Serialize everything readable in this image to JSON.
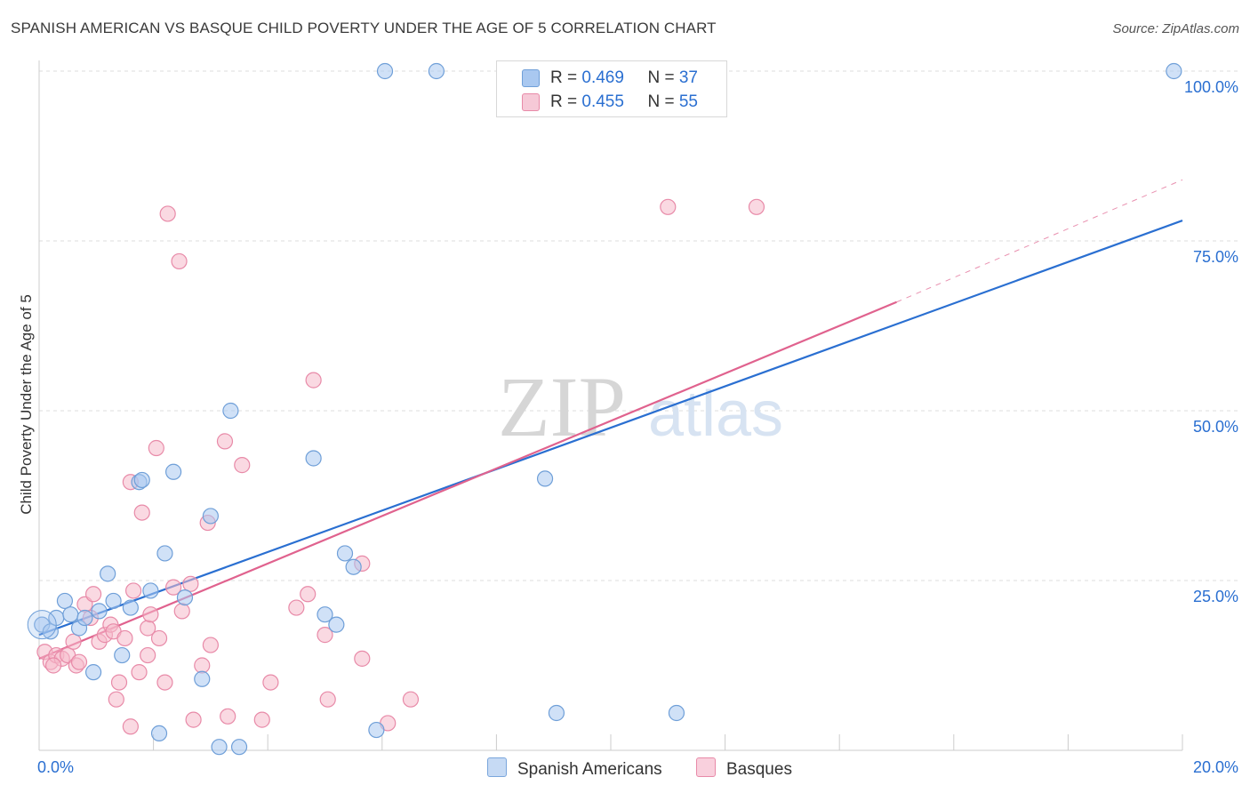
{
  "title": "SPANISH AMERICAN VS BASQUE CHILD POVERTY UNDER THE AGE OF 5 CORRELATION CHART",
  "source": "Source: ZipAtlas.com",
  "watermark": {
    "zip": "ZIP",
    "atlas": "atlas"
  },
  "colors": {
    "blue_fill": "#a9c8f0",
    "blue_stroke": "#6f9fd8",
    "blue_line": "#2a6fd1",
    "pink_fill": "#f6b9cb",
    "pink_stroke": "#e88aa8",
    "pink_line": "#e0628e",
    "value_text": "#2a6fd1",
    "grid": "#dddddd"
  },
  "legend": {
    "rows": [
      {
        "r_label": "R = ",
        "r_value": "0.469",
        "n_label": "N = ",
        "n_value": "37"
      },
      {
        "r_label": "R = ",
        "r_value": "0.455",
        "n_label": "N = ",
        "n_value": "55"
      }
    ]
  },
  "chart_data": {
    "type": "scatter",
    "xlabel": "",
    "ylabel": "Child Poverty Under the Age of 5",
    "xlim": [
      0,
      20
    ],
    "ylim": [
      0,
      100
    ],
    "x_tick_labels": [
      "0.0%",
      "20.0%"
    ],
    "y_tick_labels": [
      {
        "value": 25,
        "label": "25.0%"
      },
      {
        "value": 50,
        "label": "50.0%"
      },
      {
        "value": 75,
        "label": "75.0%"
      },
      {
        "value": 100,
        "label": "100.0%"
      }
    ],
    "grid": true,
    "legend_position": "bottom",
    "series": [
      {
        "name": "Spanish Americans",
        "r": 0.469,
        "n": 37,
        "trend": {
          "x": [
            0,
            20
          ],
          "y": [
            17,
            78
          ],
          "dashed_extension": false
        },
        "points": [
          [
            0.05,
            18.5
          ],
          [
            0.2,
            17.5
          ],
          [
            0.3,
            19.5
          ],
          [
            0.45,
            22.0
          ],
          [
            0.55,
            20.0
          ],
          [
            0.7,
            18.0
          ],
          [
            0.8,
            19.5
          ],
          [
            0.95,
            11.5
          ],
          [
            1.05,
            20.5
          ],
          [
            1.2,
            26.0
          ],
          [
            1.3,
            22.0
          ],
          [
            1.45,
            14.0
          ],
          [
            1.6,
            21.0
          ],
          [
            1.75,
            39.5
          ],
          [
            1.95,
            23.5
          ],
          [
            2.1,
            2.5
          ],
          [
            2.2,
            29.0
          ],
          [
            2.35,
            41.0
          ],
          [
            2.55,
            22.5
          ],
          [
            2.85,
            10.5
          ],
          [
            3.0,
            34.5
          ],
          [
            3.15,
            0.5
          ],
          [
            3.35,
            50.0
          ],
          [
            3.5,
            0.5
          ],
          [
            4.8,
            43.0
          ],
          [
            5.0,
            20.0
          ],
          [
            5.2,
            18.5
          ],
          [
            5.35,
            29.0
          ],
          [
            5.5,
            27.0
          ],
          [
            5.9,
            3.0
          ],
          [
            6.05,
            100.0
          ],
          [
            6.95,
            100.0
          ],
          [
            8.85,
            40.0
          ],
          [
            9.05,
            5.5
          ],
          [
            11.15,
            5.5
          ],
          [
            19.85,
            100.0
          ],
          [
            1.8,
            39.8
          ]
        ]
      },
      {
        "name": "Basques",
        "r": 0.455,
        "n": 55,
        "trend": {
          "x": [
            0,
            15
          ],
          "y": [
            13.5,
            66
          ],
          "dashed_extension": true,
          "dashed_to": [
            20,
            84
          ]
        },
        "points": [
          [
            0.1,
            14.5
          ],
          [
            0.2,
            13.0
          ],
          [
            0.3,
            14.0
          ],
          [
            0.4,
            13.5
          ],
          [
            0.5,
            14.0
          ],
          [
            0.6,
            16.0
          ],
          [
            0.65,
            12.5
          ],
          [
            0.7,
            13.0
          ],
          [
            0.8,
            21.5
          ],
          [
            0.9,
            19.5
          ],
          [
            0.95,
            23.0
          ],
          [
            1.05,
            16.0
          ],
          [
            1.15,
            17.0
          ],
          [
            1.25,
            18.5
          ],
          [
            1.3,
            17.5
          ],
          [
            1.35,
            7.5
          ],
          [
            1.4,
            10.0
          ],
          [
            1.5,
            16.5
          ],
          [
            1.6,
            3.5
          ],
          [
            1.6,
            39.5
          ],
          [
            1.65,
            23.5
          ],
          [
            1.75,
            11.5
          ],
          [
            1.8,
            35.0
          ],
          [
            1.9,
            18.0
          ],
          [
            1.95,
            20.0
          ],
          [
            2.05,
            44.5
          ],
          [
            2.1,
            16.5
          ],
          [
            2.2,
            10.0
          ],
          [
            2.25,
            79.0
          ],
          [
            2.35,
            24.0
          ],
          [
            2.45,
            72.0
          ],
          [
            2.5,
            20.5
          ],
          [
            2.65,
            24.5
          ],
          [
            2.7,
            4.5
          ],
          [
            2.85,
            12.5
          ],
          [
            2.95,
            33.5
          ],
          [
            3.0,
            15.5
          ],
          [
            3.25,
            45.5
          ],
          [
            3.3,
            5.0
          ],
          [
            3.55,
            42.0
          ],
          [
            3.9,
            4.5
          ],
          [
            4.05,
            10.0
          ],
          [
            4.5,
            21.0
          ],
          [
            4.7,
            23.0
          ],
          [
            4.8,
            54.5
          ],
          [
            5.0,
            17.0
          ],
          [
            5.05,
            7.5
          ],
          [
            5.65,
            27.5
          ],
          [
            5.65,
            13.5
          ],
          [
            6.1,
            4.0
          ],
          [
            6.5,
            7.5
          ],
          [
            11.0,
            80.0
          ],
          [
            12.55,
            80.0
          ],
          [
            0.25,
            12.5
          ],
          [
            1.9,
            14.0
          ]
        ]
      }
    ]
  }
}
